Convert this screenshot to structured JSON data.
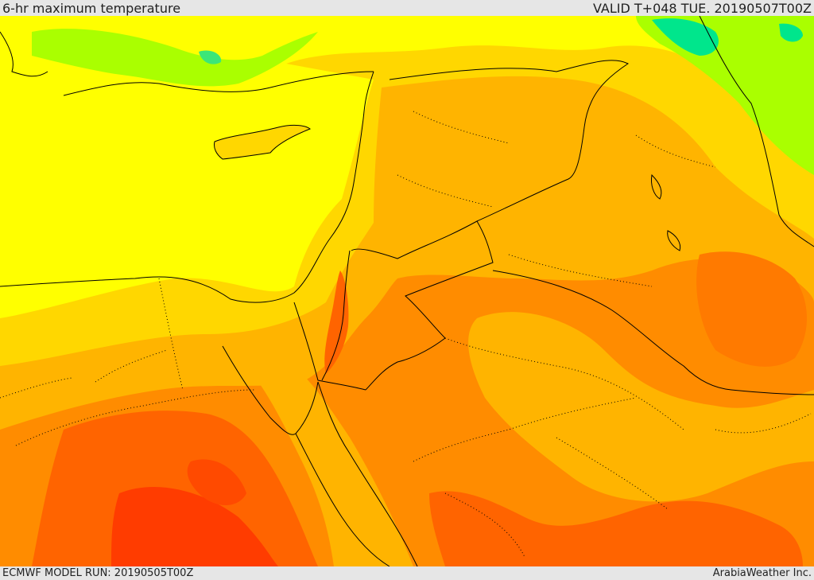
{
  "header": {
    "title": "6-hr maximum temperature",
    "valid": "VALID T+048 TUE. 20190507T00Z"
  },
  "footer": {
    "model_run": "ECMWF MODEL RUN: 20190505T00Z",
    "credit": "ArabiaWeather Inc."
  },
  "map": {
    "field": "temperature",
    "colors": {
      "sea_yellow": "#ffff00",
      "yellow_orange": "#ffd700",
      "light_orange": "#ffb400",
      "orange": "#ff8c00",
      "dark_orange": "#ff6400",
      "red_orange": "#ff3c00",
      "green": "#aaff00",
      "teal": "#00e68c",
      "border": "#000000"
    }
  }
}
